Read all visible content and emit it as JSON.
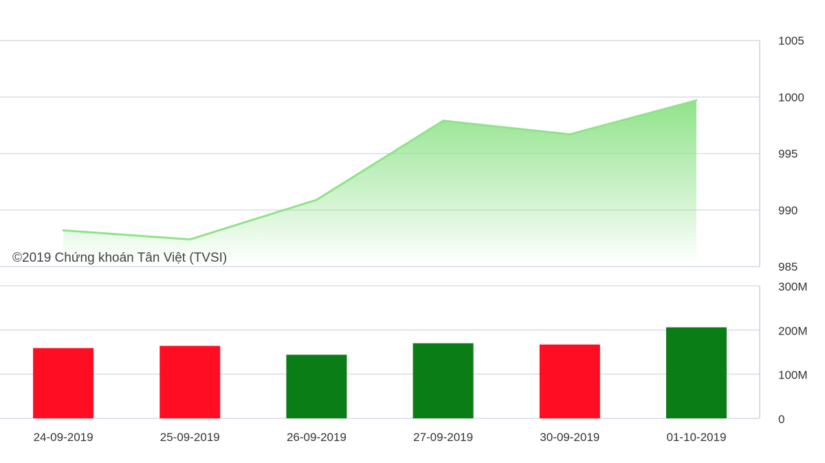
{
  "watermark": "©2019 Chứng khoán Tân Việt (TVSI)",
  "colors": {
    "line": "#90e38a",
    "area_top": "#90e38a",
    "up": "#0a7d16",
    "down": "#ff0d22",
    "grid": "#d8dce6",
    "axis": "#c8d0e0",
    "text": "#333333"
  },
  "chart_data": [
    {
      "type": "area",
      "categories": [
        "24-09-2019",
        "25-09-2019",
        "26-09-2019",
        "27-09-2019",
        "30-09-2019",
        "01-10-2019"
      ],
      "series": [
        {
          "values": [
            988.2,
            987.4,
            990.9,
            997.9,
            996.7,
            999.7
          ]
        }
      ],
      "ylim": [
        985,
        1005
      ],
      "yticks": [
        "985",
        "990",
        "995",
        "1000",
        "1005"
      ],
      "grid": true,
      "y_axis_position": "right"
    },
    {
      "type": "bar",
      "categories": [
        "24-09-2019",
        "25-09-2019",
        "26-09-2019",
        "27-09-2019",
        "30-09-2019",
        "01-10-2019"
      ],
      "series": [
        {
          "values": [
            159,
            164,
            144,
            170,
            167,
            206
          ],
          "direction": [
            "down",
            "down",
            "up",
            "up",
            "down",
            "up"
          ]
        }
      ],
      "ylim": [
        0,
        300
      ],
      "yticks": [
        "0",
        "100M",
        "200M",
        "300M"
      ],
      "grid": true,
      "y_axis_position": "right"
    }
  ]
}
